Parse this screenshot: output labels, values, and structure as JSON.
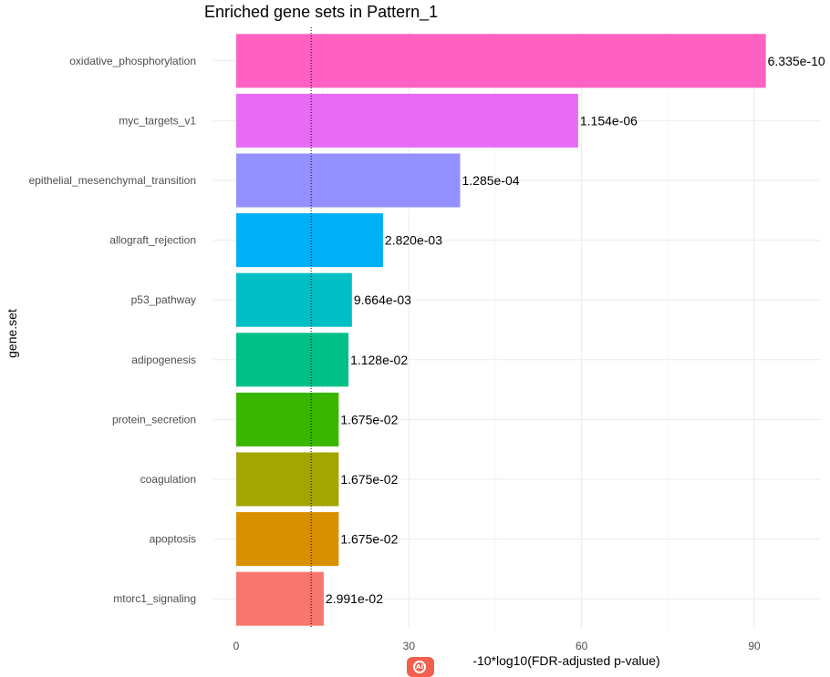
{
  "chart_data": {
    "type": "bar",
    "orientation": "horizontal",
    "title": "Enriched gene sets in Pattern_1",
    "xlabel": "-10*log10(FDR-adjusted p-value)",
    "ylabel": "gene.set",
    "xlim": [
      0,
      102
    ],
    "x_ticks": [
      0,
      30,
      60,
      90
    ],
    "threshold_line": 13.01,
    "grid": true,
    "categories": [
      "oxidative_phosphorylation",
      "myc_targets_v1",
      "epithelial_mesenchymal_transition",
      "allograft_rejection",
      "p53_pathway",
      "adipogenesis",
      "protein_secretion",
      "coagulation",
      "apoptosis",
      "mtorc1_signaling"
    ],
    "values": [
      92.0,
      59.4,
      38.9,
      25.5,
      20.1,
      19.5,
      17.8,
      17.8,
      17.8,
      15.2
    ],
    "data_labels": [
      "6.335e-10",
      "1.154e-06",
      "1.285e-04",
      "2.820e-03",
      "9.664e-03",
      "1.128e-02",
      "1.675e-02",
      "1.675e-02",
      "1.675e-02",
      "2.991e-02"
    ],
    "colors": [
      "#FF61C3",
      "#E76BF3",
      "#9590FF",
      "#00B0F6",
      "#00BFC4",
      "#00C087",
      "#39B600",
      "#A3A500",
      "#D89000",
      "#F8766D"
    ]
  }
}
